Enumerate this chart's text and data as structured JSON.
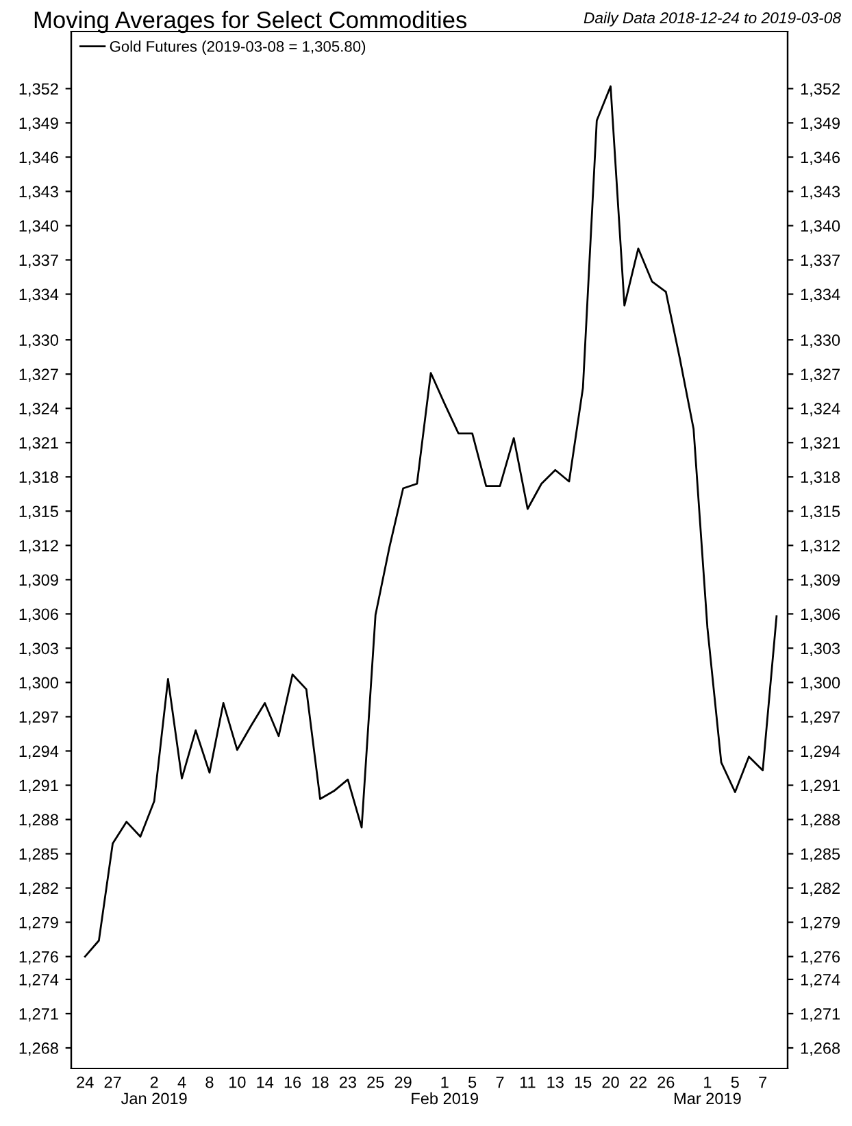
{
  "chart_data": {
    "type": "line",
    "title": "Moving Averages for Select Commodities",
    "subtitle": "Daily Data 2018-12-24 to 2019-03-08",
    "categories": [
      "24",
      null,
      "27",
      null,
      null,
      "2\nJan 2019",
      null,
      "4",
      null,
      "8",
      null,
      "10",
      null,
      "14",
      null,
      "16",
      null,
      "18",
      null,
      "23",
      null,
      "25",
      null,
      "29",
      null,
      null,
      "1\nFeb 2019",
      null,
      "5",
      null,
      "7",
      null,
      "11",
      null,
      "13",
      null,
      "15",
      null,
      "20",
      null,
      "22",
      null,
      "26",
      null,
      null,
      "1\nMar 2019",
      null,
      "5",
      null,
      "7",
      null
    ],
    "series": [
      {
        "name": "Gold Futures (2019-03-08 = 1,305.80)",
        "color": "#000000",
        "values": [
          1276.0,
          1277.4,
          1285.9,
          1287.8,
          1286.5,
          1289.6,
          1300.3,
          1291.6,
          1295.8,
          1292.1,
          1298.2,
          1294.1,
          1296.2,
          1298.2,
          1295.3,
          1300.7,
          1299.4,
          1289.8,
          1290.5,
          1291.5,
          1287.3,
          1305.9,
          1311.8,
          1317.0,
          1317.4,
          1327.1,
          1324.4,
          1321.8,
          1321.8,
          1317.2,
          1317.2,
          1321.4,
          1315.2,
          1317.4,
          1318.6,
          1317.6,
          1325.8,
          1349.2,
          1352.2,
          1333.0,
          1338.0,
          1335.1,
          1334.2,
          1328.4,
          1322.2,
          1304.8,
          1293.0,
          1290.4,
          1293.5,
          1292.3,
          1305.8
        ]
      }
    ],
    "ylim": [
      1266.2,
      1357.0
    ],
    "yticks": [
      {
        "value": 1268,
        "label": "1,268"
      },
      {
        "value": 1271,
        "label": "1,271"
      },
      {
        "value": 1274,
        "label": "1,274"
      },
      {
        "value": 1276,
        "label": "1,276"
      },
      {
        "value": 1279,
        "label": "1,279"
      },
      {
        "value": 1282,
        "label": "1,282"
      },
      {
        "value": 1285,
        "label": "1,285"
      },
      {
        "value": 1288,
        "label": "1,288"
      },
      {
        "value": 1291,
        "label": "1,291"
      },
      {
        "value": 1294,
        "label": "1,294"
      },
      {
        "value": 1297,
        "label": "1,297"
      },
      {
        "value": 1300,
        "label": "1,300"
      },
      {
        "value": 1303,
        "label": "1,303"
      },
      {
        "value": 1306,
        "label": "1,306"
      },
      {
        "value": 1309,
        "label": "1,309"
      },
      {
        "value": 1312,
        "label": "1,312"
      },
      {
        "value": 1315,
        "label": "1,315"
      },
      {
        "value": 1318,
        "label": "1,318"
      },
      {
        "value": 1321,
        "label": "1,321"
      },
      {
        "value": 1324,
        "label": "1,324"
      },
      {
        "value": 1327,
        "label": "1,327"
      },
      {
        "value": 1330,
        "label": "1,330"
      },
      {
        "value": 1334,
        "label": "1,334"
      },
      {
        "value": 1337,
        "label": "1,337"
      },
      {
        "value": 1340,
        "label": "1,340"
      },
      {
        "value": 1343,
        "label": "1,343"
      },
      {
        "value": 1346,
        "label": "1,346"
      },
      {
        "value": 1349,
        "label": "1,349"
      },
      {
        "value": 1352,
        "label": "1,352"
      }
    ],
    "y2lim": [
      1266.2,
      1357.0
    ],
    "y2ticks": [
      {
        "value": 1268,
        "label": "1,268"
      },
      {
        "value": 1271,
        "label": "1,271"
      },
      {
        "value": 1274,
        "label": "1,274"
      },
      {
        "value": 1276,
        "label": "1,276"
      },
      {
        "value": 1279,
        "label": "1,279"
      },
      {
        "value": 1282,
        "label": "1,282"
      },
      {
        "value": 1285,
        "label": "1,285"
      },
      {
        "value": 1288,
        "label": "1,288"
      },
      {
        "value": 1291,
        "label": "1,291"
      },
      {
        "value": 1294,
        "label": "1,294"
      },
      {
        "value": 1297,
        "label": "1,297"
      },
      {
        "value": 1300,
        "label": "1,300"
      },
      {
        "value": 1303,
        "label": "1,303"
      },
      {
        "value": 1306,
        "label": "1,306"
      },
      {
        "value": 1309,
        "label": "1,309"
      },
      {
        "value": 1312,
        "label": "1,312"
      },
      {
        "value": 1315,
        "label": "1,315"
      },
      {
        "value": 1318,
        "label": "1,318"
      },
      {
        "value": 1321,
        "label": "1,321"
      },
      {
        "value": 1324,
        "label": "1,324"
      },
      {
        "value": 1327,
        "label": "1,327"
      },
      {
        "value": 1330,
        "label": "1,330"
      },
      {
        "value": 1334,
        "label": "1,334"
      },
      {
        "value": 1337,
        "label": "1,337"
      },
      {
        "value": 1340,
        "label": "1,340"
      },
      {
        "value": 1343,
        "label": "1,343"
      },
      {
        "value": 1346,
        "label": "1,346"
      },
      {
        "value": 1349,
        "label": "1,349"
      },
      {
        "value": 1352,
        "label": "1,352"
      }
    ],
    "grid": false,
    "legend": "top left",
    "marker": "none",
    "line_style": "solid"
  }
}
